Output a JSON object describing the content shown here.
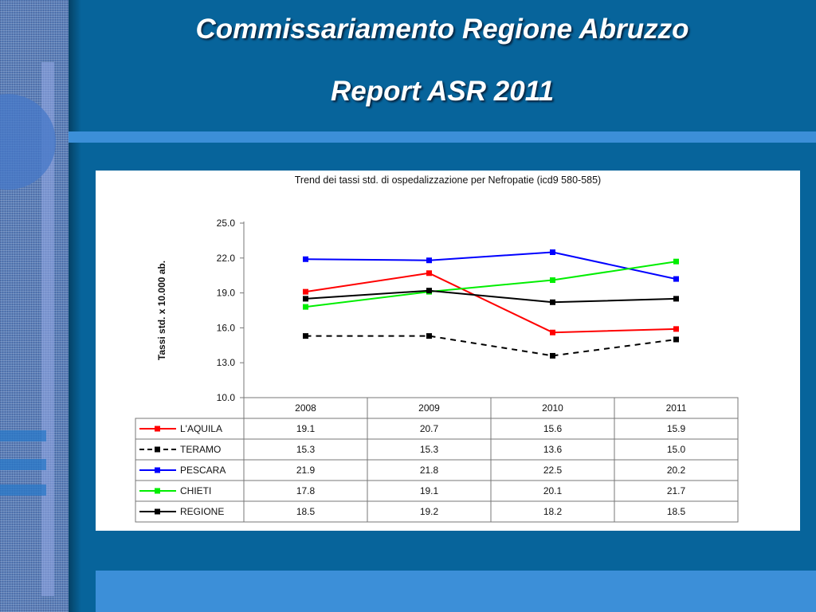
{
  "slide": {
    "title_line1": "Commissariamento Regione Abruzzo",
    "title_line2": "Report ASR 2011"
  },
  "chart_data": {
    "type": "line",
    "title": "Trend dei tassi std. di ospedalizzazione per Nefropatie (icd9 580-585)",
    "ylabel": "Tassi std. x 10.000 ab.",
    "xlabel": "",
    "x": [
      "2008",
      "2009",
      "2010",
      "2011"
    ],
    "ylim": [
      10,
      25
    ],
    "yticks": [
      "10.0",
      "13.0",
      "16.0",
      "19.0",
      "22.0",
      "25.0"
    ],
    "grid": false,
    "legend": "data-table",
    "series": [
      {
        "name": "L'AQUILA",
        "color": "#ff0000",
        "dashed": false,
        "values": [
          19.1,
          20.7,
          15.6,
          15.9
        ],
        "labels": [
          "19.1",
          "20.7",
          "15.6",
          "15.9"
        ]
      },
      {
        "name": "TERAMO",
        "color": "#000000",
        "dashed": true,
        "values": [
          15.3,
          15.3,
          13.6,
          15.0
        ],
        "labels": [
          "15.3",
          "15.3",
          "13.6",
          "15.0"
        ]
      },
      {
        "name": "PESCARA",
        "color": "#0000ff",
        "dashed": false,
        "values": [
          21.9,
          21.8,
          22.5,
          20.2
        ],
        "labels": [
          "21.9",
          "21.8",
          "22.5",
          "20.2"
        ]
      },
      {
        "name": "CHIETI",
        "color": "#00ee00",
        "dashed": false,
        "values": [
          17.8,
          19.1,
          20.1,
          21.7
        ],
        "labels": [
          "17.8",
          "19.1",
          "20.1",
          "21.7"
        ]
      },
      {
        "name": "REGIONE",
        "color": "#000000",
        "dashed": false,
        "values": [
          18.5,
          19.2,
          18.2,
          18.5
        ],
        "labels": [
          "18.5",
          "19.2",
          "18.2",
          "18.5"
        ]
      }
    ]
  }
}
